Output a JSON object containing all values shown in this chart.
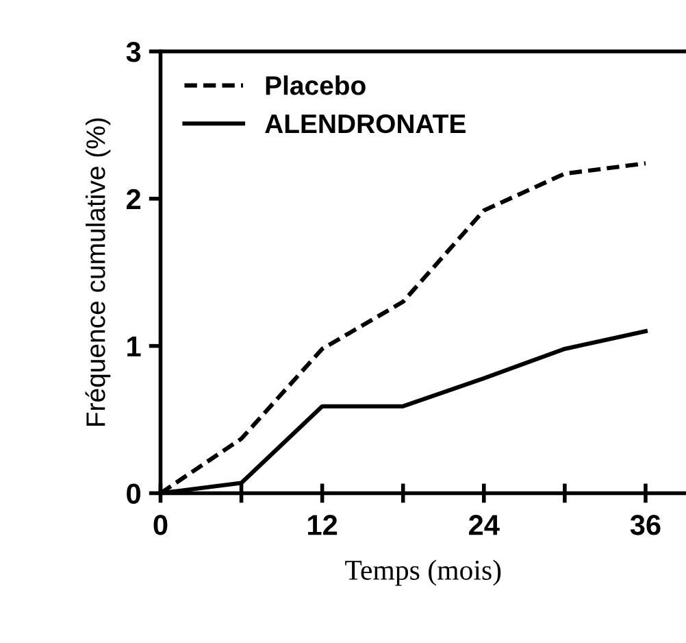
{
  "chart_data": {
    "type": "line",
    "xlabel": "Temps (mois)",
    "ylabel": "Fréquence cumulative (%)",
    "x": [
      0,
      6,
      12,
      18,
      24,
      30,
      36
    ],
    "series": [
      {
        "name": "Placebo",
        "color": "#000000",
        "line_style": "dashed",
        "values": [
          0,
          0.37,
          0.98,
          1.3,
          1.92,
          2.17,
          2.24
        ]
      },
      {
        "name": "ALENDRONATE",
        "color": "#000000",
        "line_style": "solid",
        "values": [
          0,
          0.07,
          0.59,
          0.59,
          0.78,
          0.98,
          1.1
        ]
      }
    ],
    "xlim": [
      0,
      39
    ],
    "xticks": [
      0,
      {
        "value": 6,
        "label": null
      },
      12,
      {
        "value": 18,
        "label": null
      },
      24,
      {
        "value": 30,
        "label": null
      },
      36
    ],
    "ylim": [
      0,
      3
    ],
    "yticks": [
      0,
      1,
      2,
      3
    ],
    "grid": false,
    "legend": "top left",
    "marker": "none"
  }
}
